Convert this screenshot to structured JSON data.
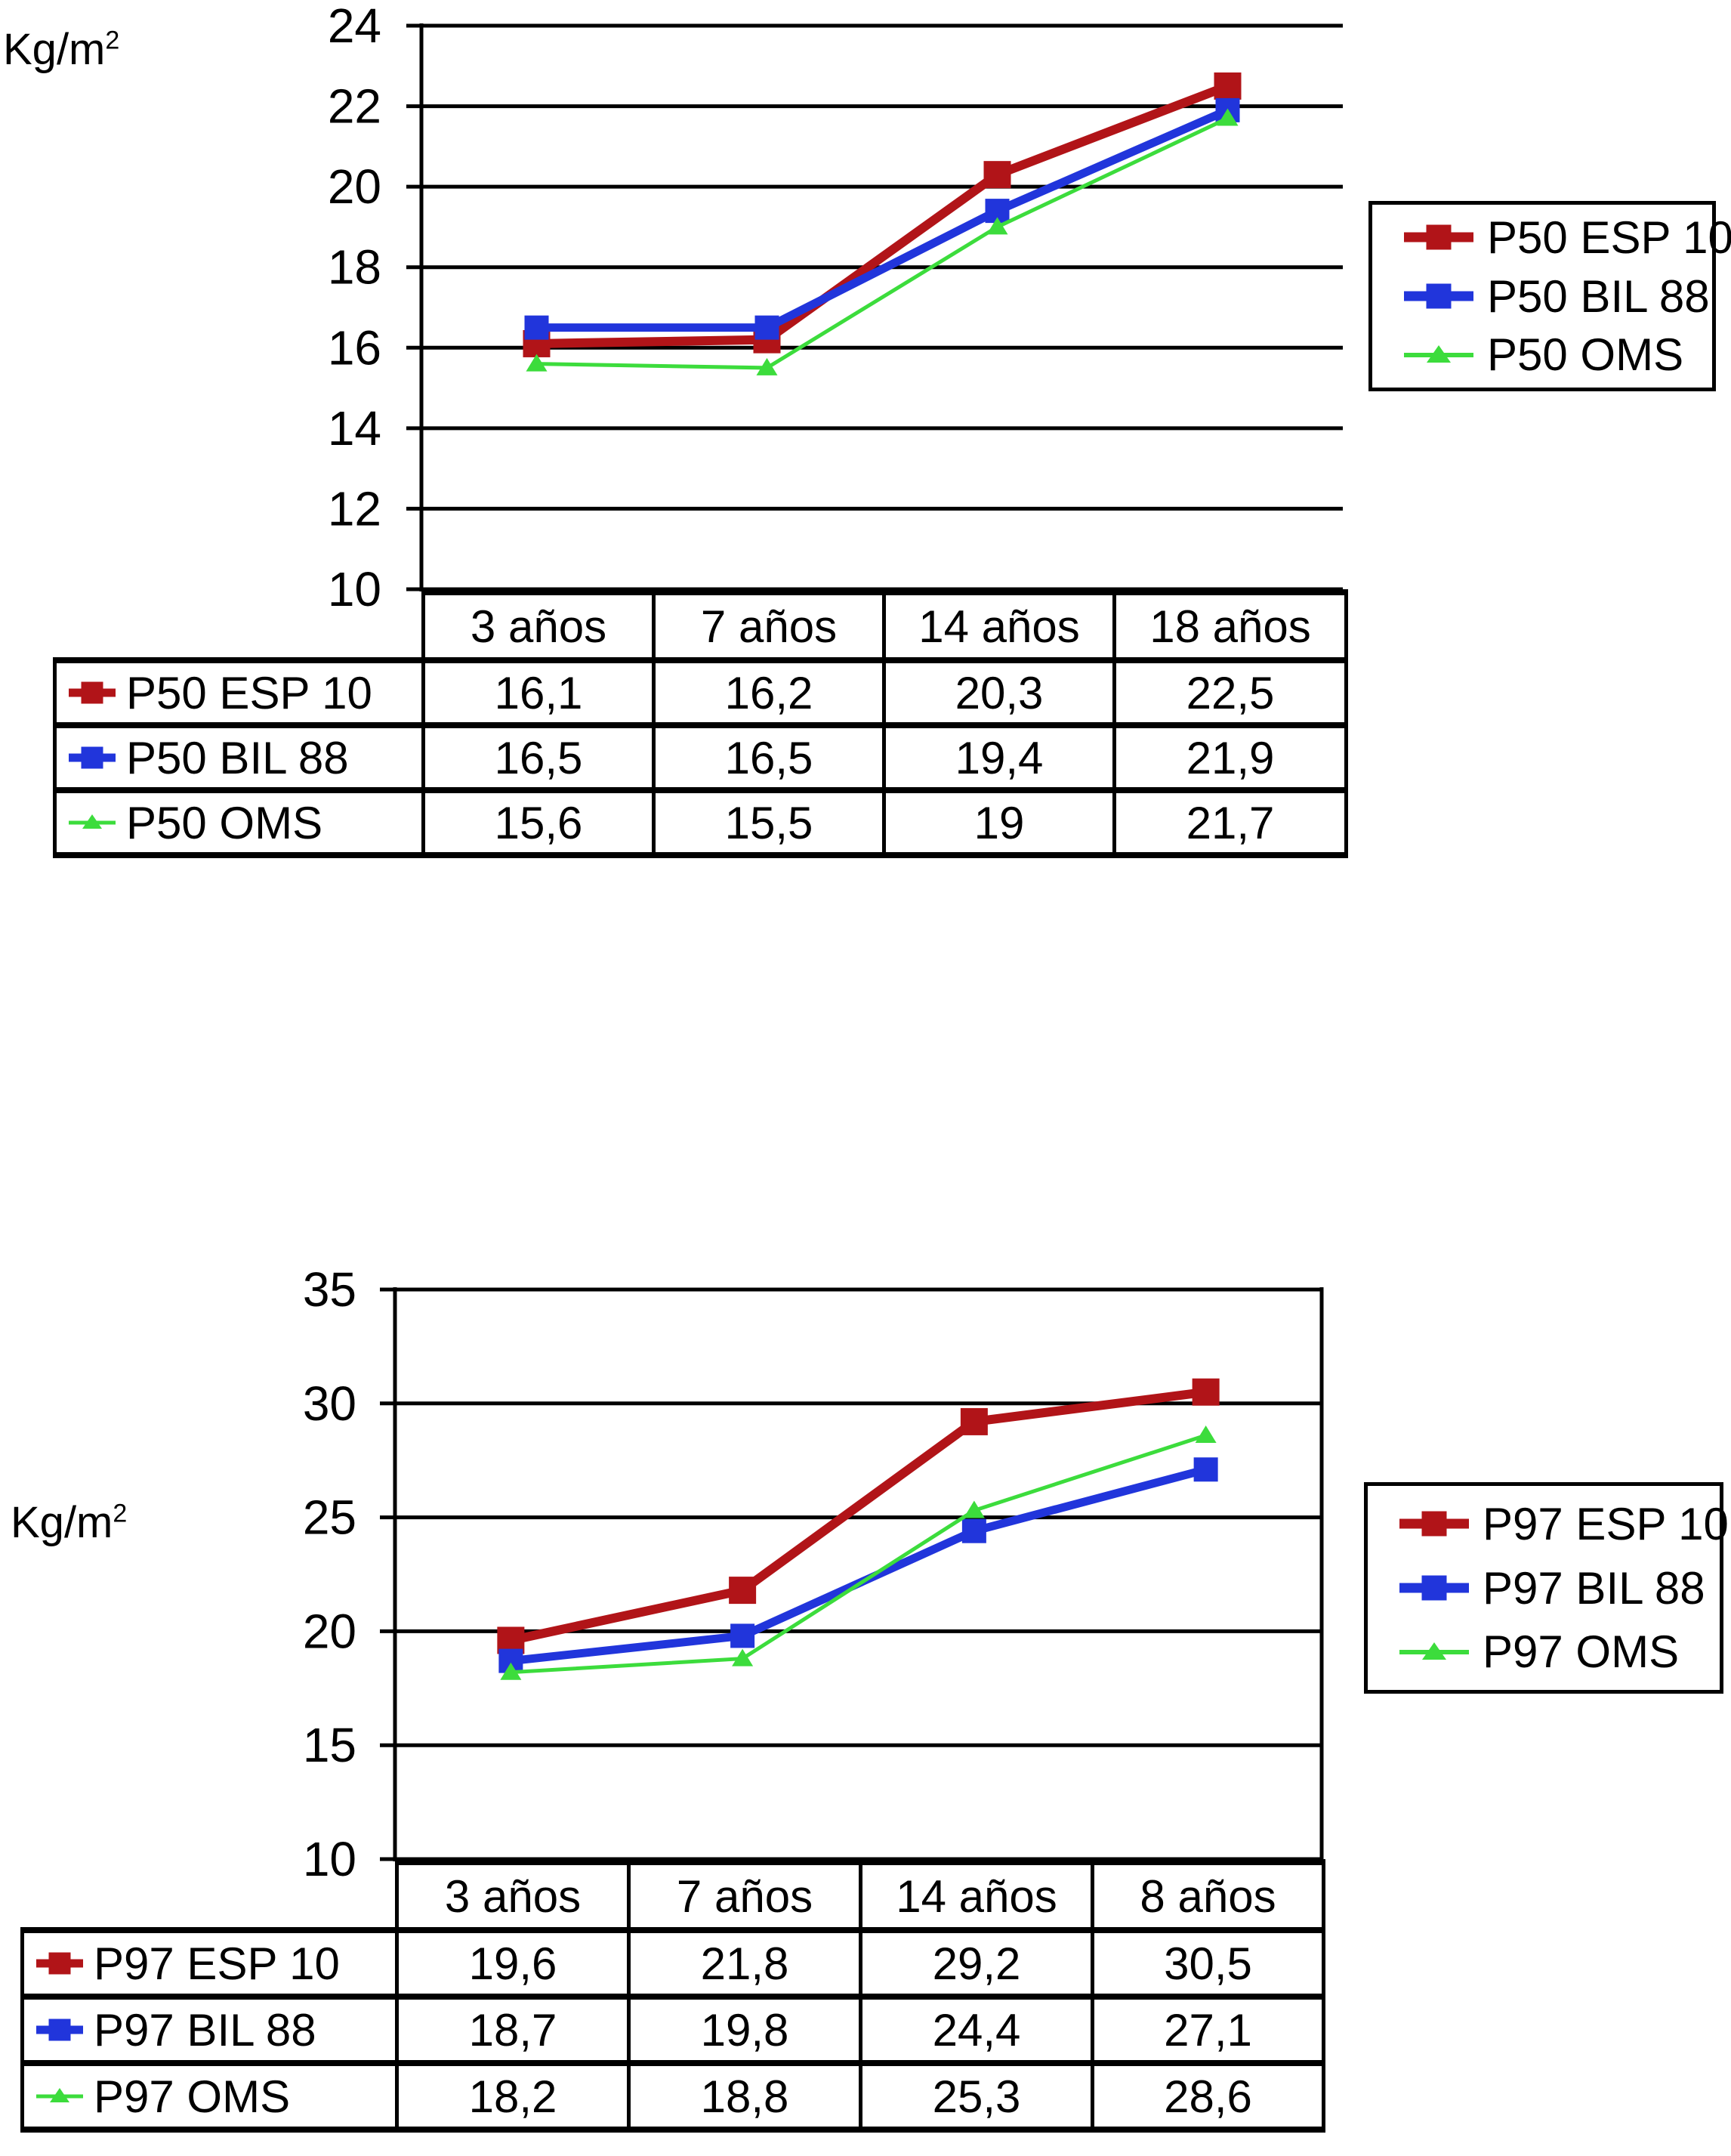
{
  "chart_data": [
    {
      "type": "line",
      "title": "",
      "unit_base": "Kg/m",
      "unit_sup": "2",
      "ylim": [
        10,
        24
      ],
      "y_tick_labels": [
        "24",
        "22",
        "20",
        "18",
        "16",
        "14",
        "12",
        "10"
      ],
      "grid": true,
      "legend_position": "right",
      "categories": [
        "3 años",
        "7 años",
        "14 años",
        "18 años"
      ],
      "series": [
        {
          "name": "P50 ESP 10",
          "marker": "square",
          "color": "#b11418",
          "values": [
            16.1,
            16.2,
            20.3,
            22.5
          ],
          "display": [
            "16,1",
            "16,2",
            "20,3",
            "22,5"
          ]
        },
        {
          "name": "P50 BIL 88",
          "marker": "square",
          "color": "#2135db",
          "values": [
            16.5,
            16.5,
            19.4,
            21.9
          ],
          "display": [
            "16,5",
            "16,5",
            "19,4",
            "21,9"
          ]
        },
        {
          "name": "P50 OMS",
          "marker": "triangle",
          "color": "#3cdc3c",
          "values": [
            15.6,
            15.5,
            19.0,
            21.7
          ],
          "display": [
            "15,6",
            "15,5",
            "19",
            "21,7"
          ]
        }
      ]
    },
    {
      "type": "line",
      "title": "",
      "unit_base": "Kg/m",
      "unit_sup": "2",
      "ylim": [
        10,
        35
      ],
      "y_tick_labels": [
        "35",
        "30",
        "25",
        "20",
        "15",
        "10"
      ],
      "grid": true,
      "legend_position": "right",
      "categories": [
        "3 años",
        "7 años",
        "14 años",
        "8 años"
      ],
      "series": [
        {
          "name": "P97 ESP 10",
          "marker": "square",
          "color": "#b11418",
          "values": [
            19.6,
            21.8,
            29.2,
            30.5
          ],
          "display": [
            "19,6",
            "21,8",
            "29,2",
            "30,5"
          ]
        },
        {
          "name": "P97 BIL 88",
          "marker": "square",
          "color": "#2135db",
          "values": [
            18.7,
            19.8,
            24.4,
            27.1
          ],
          "display": [
            "18,7",
            "19,8",
            "24,4",
            "27,1"
          ]
        },
        {
          "name": "P97 OMS",
          "marker": "triangle",
          "color": "#3cdc3c",
          "values": [
            18.2,
            18.8,
            25.3,
            28.6
          ],
          "display": [
            "18,2",
            "18,8",
            "25,3",
            "28,6"
          ]
        }
      ]
    }
  ]
}
